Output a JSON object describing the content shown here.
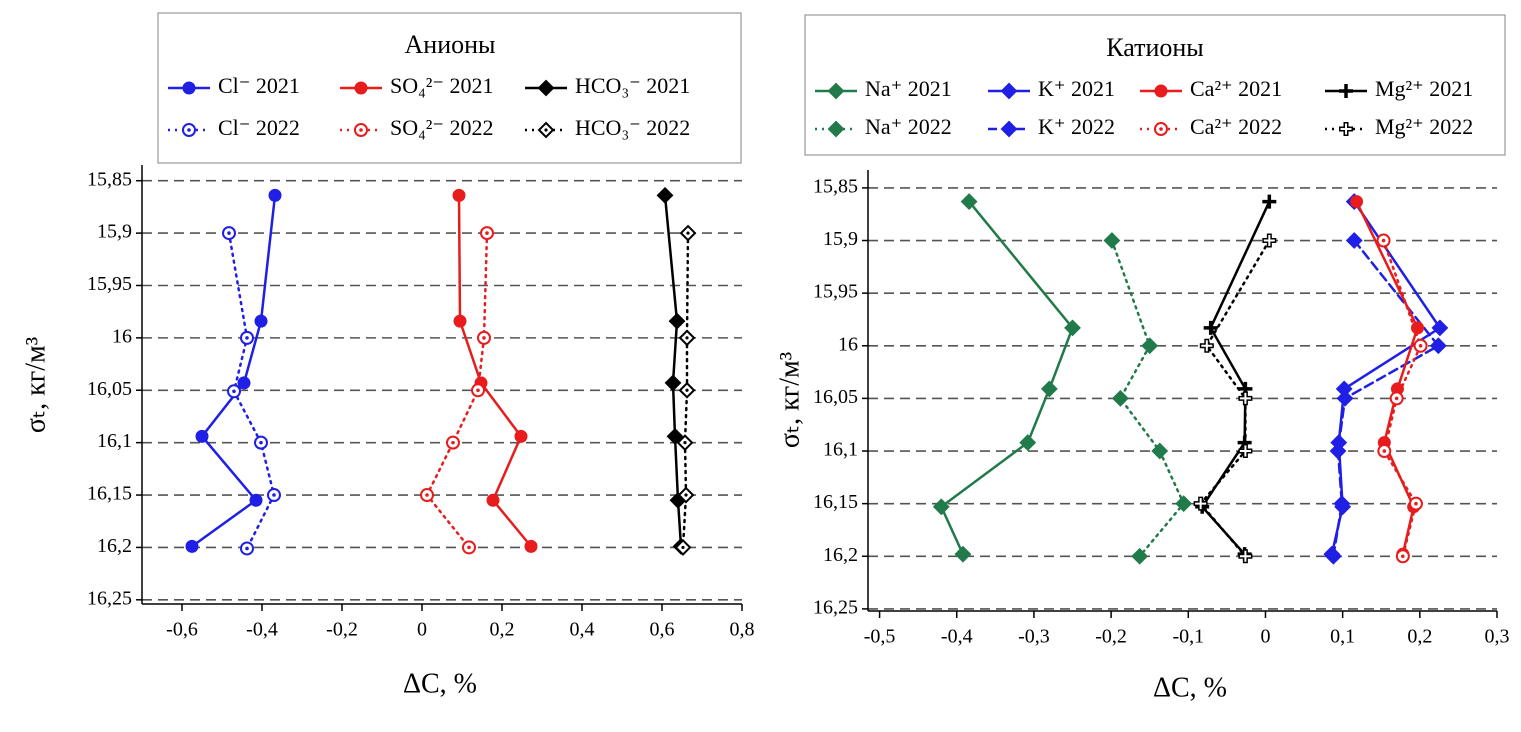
{
  "chart_data": [
    {
      "type": "line",
      "legend_title": "Анионы",
      "x_label": "ΔC, %",
      "y_label": "σₜ, кг/м³",
      "xlim": [
        -0.7,
        0.8
      ],
      "xticks": [
        {
          "value": -0.6,
          "label": "-0,6"
        },
        {
          "value": -0.4,
          "label": "-0,4"
        },
        {
          "value": -0.2,
          "label": "-0,2"
        },
        0,
        {
          "value": 0.2,
          "label": "0,2"
        },
        {
          "value": 0.4,
          "label": "0,4"
        },
        {
          "value": 0.6,
          "label": "0,6"
        },
        {
          "value": 0.8,
          "label": "0,8"
        }
      ],
      "ylim": [
        15.835,
        16.254
      ],
      "y_inverted": true,
      "yticks": [
        {
          "value": 15.85,
          "label": "15,85"
        },
        {
          "value": 15.9,
          "label": "15,9"
        },
        {
          "value": 15.95,
          "label": "15,95"
        },
        16,
        {
          "value": 16.05,
          "label": "16,05"
        },
        {
          "value": 16.1,
          "label": "16,1"
        },
        {
          "value": 16.15,
          "label": "16,15"
        },
        {
          "value": 16.2,
          "label": "16,2"
        },
        {
          "value": 16.25,
          "label": "16,25"
        }
      ],
      "grid": true,
      "series": [
        {
          "name": "Cl⁻ 2021",
          "color": "#1f1fe6",
          "marker": "circle",
          "line": "solid",
          "x": [
            -0.3675,
            -0.4025,
            -0.445,
            -0.55,
            -0.415,
            -0.575
          ],
          "values": [
            15.864,
            15.984,
            16.043,
            16.094,
            16.155,
            16.199
          ]
        },
        {
          "name": "Cl⁻ 2022",
          "color": "#1f1fe6",
          "marker": "circle-open",
          "line": "dotted",
          "x": [
            -0.4825,
            -0.4375,
            -0.47,
            -0.4025,
            -0.37,
            -0.4375
          ],
          "values": [
            15.9,
            16.0,
            16.051,
            16.1,
            16.15,
            16.201
          ]
        },
        {
          "name": "SO₄²⁻ 2021",
          "color": "#e81c1c",
          "marker": "circle",
          "line": "solid",
          "x": [
            0.0925,
            0.095,
            0.1475,
            0.2475,
            0.1775,
            0.2725
          ],
          "values": [
            15.864,
            15.984,
            16.043,
            16.094,
            16.155,
            16.199
          ]
        },
        {
          "name": "SO₄²⁻ 2022",
          "color": "#e81c1c",
          "marker": "circle-open",
          "line": "dotted",
          "x": [
            0.1625,
            0.155,
            0.14,
            0.0775,
            0.0125,
            0.1175
          ],
          "values": [
            15.9,
            16.0,
            16.05,
            16.1,
            16.15,
            16.2
          ]
        },
        {
          "name": "HCO₃⁻ 2021",
          "color": "#000000",
          "marker": "diamond",
          "line": "solid",
          "x": [
            0.6075,
            0.6375,
            0.6275,
            0.6325,
            0.64,
            0.6475
          ],
          "values": [
            15.864,
            15.984,
            16.043,
            16.094,
            16.155,
            16.199
          ]
        },
        {
          "name": "HCO₃⁻ 2022",
          "color": "#000000",
          "marker": "diamond-open",
          "line": "dotted",
          "x": [
            0.665,
            0.6625,
            0.6625,
            0.6575,
            0.66,
            0.6525
          ],
          "values": [
            15.9,
            16.0,
            16.05,
            16.1,
            16.15,
            16.2
          ]
        }
      ]
    },
    {
      "type": "line",
      "legend_title": "Катионы",
      "x_label": "ΔC, %",
      "y_label": "σₜ, кг/м³",
      "xlim": [
        -0.515,
        0.3
      ],
      "xticks": [
        {
          "value": -0.5,
          "label": "-0,5"
        },
        {
          "value": -0.4,
          "label": "-0,4"
        },
        {
          "value": -0.3,
          "label": "-0,3"
        },
        {
          "value": -0.2,
          "label": "-0,2"
        },
        {
          "value": -0.1,
          "label": "-0,1"
        },
        0,
        {
          "value": 0.1,
          "label": "0,1"
        },
        {
          "value": 0.2,
          "label": "0,2"
        },
        {
          "value": 0.3,
          "label": "0,3"
        }
      ],
      "ylim": [
        15.833,
        16.252
      ],
      "y_inverted": true,
      "yticks": [
        {
          "value": 15.85,
          "label": "15,85"
        },
        {
          "value": 15.9,
          "label": "15,9"
        },
        {
          "value": 15.95,
          "label": "15,95"
        },
        16,
        {
          "value": 16.05,
          "label": "16,05"
        },
        {
          "value": 16.1,
          "label": "16,1"
        },
        {
          "value": 16.15,
          "label": "16,15"
        },
        {
          "value": 16.2,
          "label": "16,2"
        },
        {
          "value": 16.25,
          "label": "16,25"
        }
      ],
      "grid": true,
      "series": [
        {
          "name": "Na⁺ 2021",
          "color": "#217a4a",
          "marker": "diamond",
          "line": "solid",
          "x": [
            -0.384,
            -0.25,
            -0.28,
            -0.308,
            -0.42,
            -0.392
          ],
          "values": [
            15.863,
            15.983,
            16.041,
            16.092,
            16.153,
            16.198
          ]
        },
        {
          "name": "Na⁺ 2022",
          "color": "#217a4a",
          "marker": "diamond",
          "line": "dotted",
          "x": [
            -0.199,
            -0.15,
            -0.188,
            -0.137,
            -0.106,
            -0.163
          ],
          "values": [
            15.9,
            16.0,
            16.05,
            16.1,
            16.15,
            16.2
          ]
        },
        {
          "name": "K⁺ 2021",
          "color": "#1f1fe6",
          "marker": "diamond",
          "line": "solid",
          "x": [
            0.115,
            0.226,
            0.102,
            0.095,
            0.1,
            0.086
          ],
          "values": [
            15.863,
            15.983,
            16.041,
            16.092,
            16.153,
            16.198
          ]
        },
        {
          "name": "K⁺ 2022",
          "color": "#1f1fe6",
          "marker": "diamond",
          "line": "dashed",
          "x": [
            0.115,
            0.224,
            0.103,
            0.094,
            0.099,
            0.088
          ],
          "values": [
            15.9,
            16.0,
            16.05,
            16.1,
            16.15,
            16.2
          ]
        },
        {
          "name": "Ca²⁺ 2021",
          "color": "#e81c1c",
          "marker": "circle",
          "line": "solid",
          "x": [
            0.118,
            0.197,
            0.171,
            0.154,
            0.192,
            0.178
          ],
          "values": [
            15.863,
            15.983,
            16.041,
            16.092,
            16.153,
            16.198
          ]
        },
        {
          "name": "Ca²⁺ 2022",
          "color": "#e81c1c",
          "marker": "circle-open",
          "line": "dotted",
          "x": [
            0.153,
            0.201,
            0.17,
            0.154,
            0.195,
            0.178
          ],
          "values": [
            15.9,
            16.0,
            16.05,
            16.1,
            16.15,
            16.2
          ]
        },
        {
          "name": "Mg²⁺ 2021",
          "color": "#000000",
          "marker": "plus",
          "line": "solid",
          "x": [
            0.005,
            -0.071,
            -0.026,
            -0.027,
            -0.082,
            -0.027
          ],
          "values": [
            15.863,
            15.983,
            16.041,
            16.092,
            16.153,
            16.198
          ]
        },
        {
          "name": "Mg²⁺ 2022",
          "color": "#000000",
          "marker": "plus-open",
          "line": "dotted",
          "x": [
            0.005,
            -0.076,
            -0.026,
            -0.026,
            -0.084,
            -0.026
          ],
          "values": [
            15.9,
            16.0,
            16.05,
            16.1,
            16.15,
            16.2
          ]
        }
      ]
    }
  ]
}
